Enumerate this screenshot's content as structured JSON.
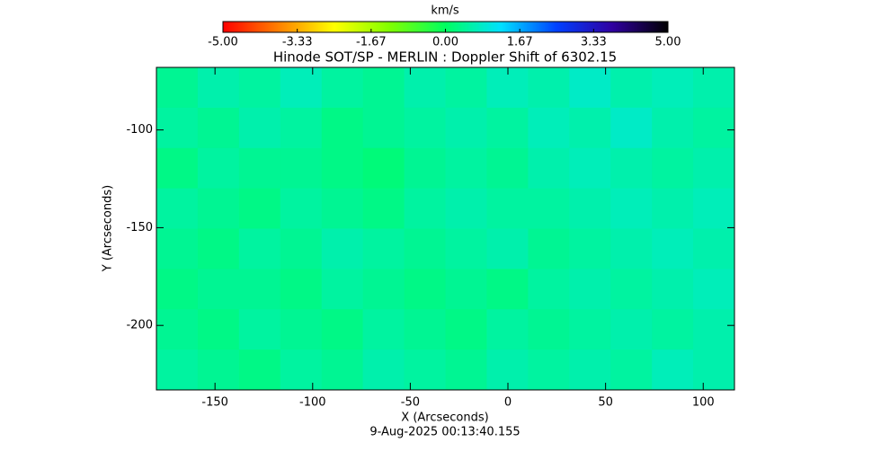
{
  "chart_data": {
    "type": "heatmap",
    "title": "Hinode SOT/SP - MERLIN : Doppler Shift of 6302.15",
    "x_label": "X (Arcseconds)",
    "y_label": "Y (Arcseconds)",
    "date": "9-Aug-2025 00:13:40.155",
    "colorbar_label": "km/s",
    "zlim": [
      -5,
      5
    ],
    "zticks": [
      {
        "value": -5,
        "label": "-5.00"
      },
      {
        "value": -3.33,
        "label": "-3.33"
      },
      {
        "value": -1.67,
        "label": "-1.67"
      },
      {
        "value": 0,
        "label": "0.00"
      },
      {
        "value": 1.67,
        "label": "1.67"
      },
      {
        "value": 3.33,
        "label": "3.33"
      },
      {
        "value": 5,
        "label": "5.00"
      }
    ],
    "colormap": [
      "#ff0000",
      "#ff8000",
      "#ffff00",
      "#80ff00",
      "#00ff60",
      "#00e0ff",
      "#0040ff",
      "#3000a0",
      "#000000"
    ],
    "xlim": [
      -180,
      116
    ],
    "xticks": [
      -150,
      -100,
      -50,
      0,
      50,
      100
    ],
    "ylim": [
      -233,
      -68
    ],
    "yticks": [
      -100,
      -150,
      -200
    ],
    "z": [
      [
        0.4,
        0.6,
        0.5,
        0.7,
        0.5,
        0.4,
        0.6,
        0.5,
        0.7,
        0.6,
        0.8,
        0.6,
        0.7,
        0.6
      ],
      [
        0.5,
        0.4,
        0.6,
        0.5,
        0.3,
        0.4,
        0.5,
        0.6,
        0.5,
        0.7,
        0.6,
        0.8,
        0.6,
        0.5
      ],
      [
        0.3,
        0.5,
        0.4,
        0.4,
        0.3,
        0.2,
        0.4,
        0.5,
        0.4,
        0.6,
        0.7,
        0.6,
        0.5,
        0.6
      ],
      [
        0.5,
        0.4,
        0.3,
        0.5,
        0.4,
        0.3,
        0.5,
        0.6,
        0.5,
        0.5,
        0.6,
        0.7,
        0.6,
        0.7
      ],
      [
        0.4,
        0.3,
        0.5,
        0.4,
        0.6,
        0.5,
        0.4,
        0.5,
        0.6,
        0.4,
        0.5,
        0.6,
        0.7,
        0.6
      ],
      [
        0.3,
        0.4,
        0.4,
        0.3,
        0.5,
        0.4,
        0.3,
        0.4,
        0.3,
        0.5,
        0.6,
        0.5,
        0.6,
        0.7
      ],
      [
        0.4,
        0.3,
        0.5,
        0.4,
        0.3,
        0.5,
        0.4,
        0.3,
        0.5,
        0.4,
        0.5,
        0.6,
        0.5,
        0.6
      ],
      [
        0.5,
        0.4,
        0.3,
        0.5,
        0.4,
        0.6,
        0.5,
        0.4,
        0.6,
        0.5,
        0.6,
        0.5,
        0.7,
        0.6
      ]
    ]
  }
}
